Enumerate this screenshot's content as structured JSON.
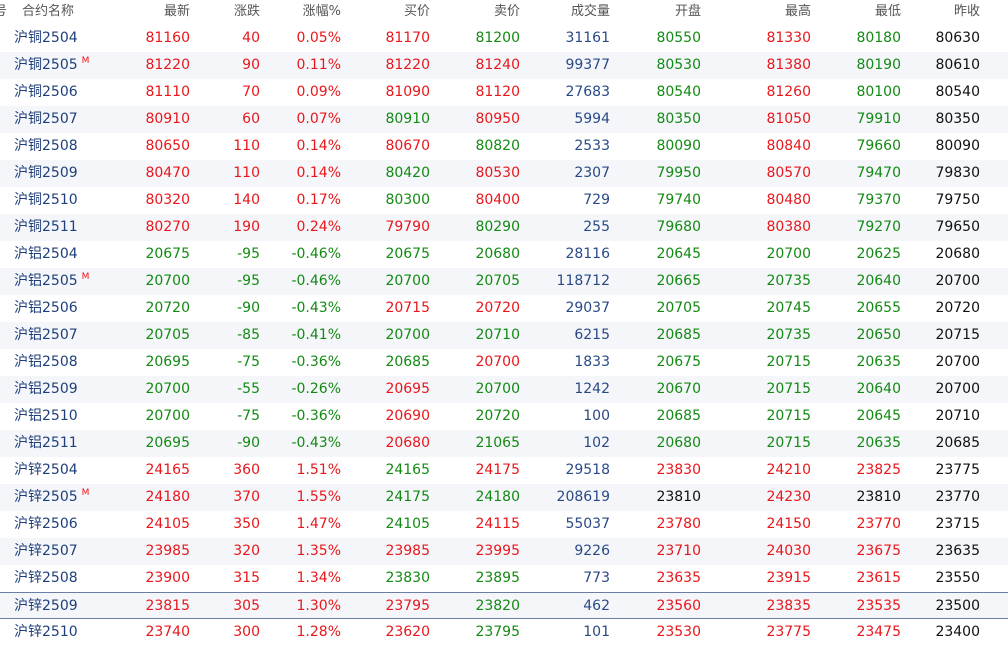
{
  "columns": [
    "号",
    "合约名称",
    "最新",
    "涨跌",
    "涨幅%",
    "买价",
    "卖价",
    "成交量",
    "开盘",
    "最高",
    "最低",
    "昨收"
  ],
  "colors": {
    "up": "#e8171b",
    "down": "#138a13",
    "volume": "#2a4a86",
    "flat": "#111111",
    "name": "#1f3f7a",
    "alt_row": "#f5f6fa"
  },
  "rows": [
    {
      "name": "沪铜2504",
      "mark": "",
      "last": "81160",
      "chg": "40",
      "pct": "0.05%",
      "bid": "81170",
      "ask": "81200",
      "vol": "31161",
      "open": "80550",
      "high": "81330",
      "low": "80180",
      "prev": "80630",
      "c": [
        "red",
        "red",
        "red",
        "red",
        "green",
        "blue",
        "green",
        "red",
        "green",
        "black"
      ]
    },
    {
      "name": "沪铜2505",
      "mark": "M",
      "last": "81220",
      "chg": "90",
      "pct": "0.11%",
      "bid": "81220",
      "ask": "81240",
      "vol": "99377",
      "open": "80530",
      "high": "81380",
      "low": "80190",
      "prev": "80610",
      "c": [
        "red",
        "red",
        "red",
        "red",
        "red",
        "blue",
        "green",
        "red",
        "green",
        "black"
      ]
    },
    {
      "name": "沪铜2506",
      "mark": "",
      "last": "81110",
      "chg": "70",
      "pct": "0.09%",
      "bid": "81090",
      "ask": "81120",
      "vol": "27683",
      "open": "80540",
      "high": "81260",
      "low": "80100",
      "prev": "80540",
      "c": [
        "red",
        "red",
        "red",
        "red",
        "red",
        "blue",
        "green",
        "red",
        "green",
        "black"
      ]
    },
    {
      "name": "沪铜2507",
      "mark": "",
      "last": "80910",
      "chg": "60",
      "pct": "0.07%",
      "bid": "80910",
      "ask": "80950",
      "vol": "5994",
      "open": "80350",
      "high": "81050",
      "low": "79910",
      "prev": "80350",
      "c": [
        "red",
        "red",
        "red",
        "green",
        "red",
        "blue",
        "green",
        "red",
        "green",
        "black"
      ]
    },
    {
      "name": "沪铜2508",
      "mark": "",
      "last": "80650",
      "chg": "110",
      "pct": "0.14%",
      "bid": "80670",
      "ask": "80820",
      "vol": "2533",
      "open": "80090",
      "high": "80840",
      "low": "79660",
      "prev": "80090",
      "c": [
        "red",
        "red",
        "red",
        "red",
        "green",
        "blue",
        "green",
        "red",
        "green",
        "black"
      ]
    },
    {
      "name": "沪铜2509",
      "mark": "",
      "last": "80470",
      "chg": "110",
      "pct": "0.14%",
      "bid": "80420",
      "ask": "80530",
      "vol": "2307",
      "open": "79950",
      "high": "80570",
      "low": "79470",
      "prev": "79830",
      "c": [
        "red",
        "red",
        "red",
        "green",
        "red",
        "blue",
        "green",
        "red",
        "green",
        "black"
      ]
    },
    {
      "name": "沪铜2510",
      "mark": "",
      "last": "80320",
      "chg": "140",
      "pct": "0.17%",
      "bid": "80300",
      "ask": "80400",
      "vol": "729",
      "open": "79740",
      "high": "80480",
      "low": "79370",
      "prev": "79750",
      "c": [
        "red",
        "red",
        "red",
        "green",
        "red",
        "blue",
        "green",
        "red",
        "green",
        "black"
      ]
    },
    {
      "name": "沪铜2511",
      "mark": "",
      "last": "80270",
      "chg": "190",
      "pct": "0.24%",
      "bid": "79790",
      "ask": "80290",
      "vol": "255",
      "open": "79680",
      "high": "80380",
      "low": "79270",
      "prev": "79650",
      "c": [
        "red",
        "red",
        "red",
        "red",
        "green",
        "blue",
        "green",
        "red",
        "green",
        "black"
      ]
    },
    {
      "name": "沪铝2504",
      "mark": "",
      "last": "20675",
      "chg": "-95",
      "pct": "-0.46%",
      "bid": "20675",
      "ask": "20680",
      "vol": "28116",
      "open": "20645",
      "high": "20700",
      "low": "20625",
      "prev": "20680",
      "c": [
        "green",
        "green",
        "green",
        "green",
        "green",
        "blue",
        "green",
        "green",
        "green",
        "black"
      ]
    },
    {
      "name": "沪铝2505",
      "mark": "M",
      "last": "20700",
      "chg": "-95",
      "pct": "-0.46%",
      "bid": "20700",
      "ask": "20705",
      "vol": "118712",
      "open": "20665",
      "high": "20735",
      "low": "20640",
      "prev": "20700",
      "c": [
        "green",
        "green",
        "green",
        "green",
        "green",
        "blue",
        "green",
        "green",
        "green",
        "black"
      ]
    },
    {
      "name": "沪铝2506",
      "mark": "",
      "last": "20720",
      "chg": "-90",
      "pct": "-0.43%",
      "bid": "20715",
      "ask": "20720",
      "vol": "29037",
      "open": "20705",
      "high": "20745",
      "low": "20655",
      "prev": "20720",
      "c": [
        "green",
        "green",
        "green",
        "red",
        "red",
        "blue",
        "green",
        "green",
        "green",
        "black"
      ]
    },
    {
      "name": "沪铝2507",
      "mark": "",
      "last": "20705",
      "chg": "-85",
      "pct": "-0.41%",
      "bid": "20700",
      "ask": "20710",
      "vol": "6215",
      "open": "20685",
      "high": "20735",
      "low": "20650",
      "prev": "20715",
      "c": [
        "green",
        "green",
        "green",
        "green",
        "green",
        "blue",
        "green",
        "green",
        "green",
        "black"
      ]
    },
    {
      "name": "沪铝2508",
      "mark": "",
      "last": "20695",
      "chg": "-75",
      "pct": "-0.36%",
      "bid": "20685",
      "ask": "20700",
      "vol": "1833",
      "open": "20675",
      "high": "20715",
      "low": "20635",
      "prev": "20700",
      "c": [
        "green",
        "green",
        "green",
        "green",
        "red",
        "blue",
        "green",
        "green",
        "green",
        "black"
      ]
    },
    {
      "name": "沪铝2509",
      "mark": "",
      "last": "20700",
      "chg": "-55",
      "pct": "-0.26%",
      "bid": "20695",
      "ask": "20700",
      "vol": "1242",
      "open": "20670",
      "high": "20715",
      "low": "20640",
      "prev": "20700",
      "c": [
        "green",
        "green",
        "green",
        "red",
        "green",
        "blue",
        "green",
        "green",
        "green",
        "black"
      ]
    },
    {
      "name": "沪铝2510",
      "mark": "",
      "last": "20700",
      "chg": "-75",
      "pct": "-0.36%",
      "bid": "20690",
      "ask": "20720",
      "vol": "100",
      "open": "20685",
      "high": "20715",
      "low": "20645",
      "prev": "20710",
      "c": [
        "green",
        "green",
        "green",
        "red",
        "green",
        "blue",
        "green",
        "green",
        "green",
        "black"
      ]
    },
    {
      "name": "沪铝2511",
      "mark": "",
      "last": "20695",
      "chg": "-90",
      "pct": "-0.43%",
      "bid": "20680",
      "ask": "21065",
      "vol": "102",
      "open": "20680",
      "high": "20715",
      "low": "20635",
      "prev": "20685",
      "c": [
        "green",
        "green",
        "green",
        "red",
        "green",
        "blue",
        "green",
        "green",
        "green",
        "black"
      ]
    },
    {
      "name": "沪锌2504",
      "mark": "",
      "last": "24165",
      "chg": "360",
      "pct": "1.51%",
      "bid": "24165",
      "ask": "24175",
      "vol": "29518",
      "open": "23830",
      "high": "24210",
      "low": "23825",
      "prev": "23775",
      "c": [
        "red",
        "red",
        "red",
        "green",
        "red",
        "blue",
        "red",
        "red",
        "red",
        "black"
      ]
    },
    {
      "name": "沪锌2505",
      "mark": "M",
      "last": "24180",
      "chg": "370",
      "pct": "1.55%",
      "bid": "24175",
      "ask": "24180",
      "vol": "208619",
      "open": "23810",
      "high": "24230",
      "low": "23810",
      "prev": "23770",
      "c": [
        "red",
        "red",
        "red",
        "green",
        "green",
        "blue",
        "black",
        "red",
        "black",
        "black"
      ]
    },
    {
      "name": "沪锌2506",
      "mark": "",
      "last": "24105",
      "chg": "350",
      "pct": "1.47%",
      "bid": "24105",
      "ask": "24115",
      "vol": "55037",
      "open": "23780",
      "high": "24150",
      "low": "23770",
      "prev": "23715",
      "c": [
        "red",
        "red",
        "red",
        "green",
        "red",
        "blue",
        "red",
        "red",
        "red",
        "black"
      ]
    },
    {
      "name": "沪锌2507",
      "mark": "",
      "last": "23985",
      "chg": "320",
      "pct": "1.35%",
      "bid": "23985",
      "ask": "23995",
      "vol": "9226",
      "open": "23710",
      "high": "24030",
      "low": "23675",
      "prev": "23635",
      "c": [
        "red",
        "red",
        "red",
        "red",
        "red",
        "blue",
        "red",
        "red",
        "red",
        "black"
      ]
    },
    {
      "name": "沪锌2508",
      "mark": "",
      "last": "23900",
      "chg": "315",
      "pct": "1.34%",
      "bid": "23830",
      "ask": "23895",
      "vol": "773",
      "open": "23635",
      "high": "23915",
      "low": "23615",
      "prev": "23550",
      "c": [
        "red",
        "red",
        "red",
        "green",
        "green",
        "blue",
        "red",
        "red",
        "red",
        "black"
      ]
    },
    {
      "name": "沪锌2509",
      "mark": "",
      "last": "23815",
      "chg": "305",
      "pct": "1.30%",
      "bid": "23795",
      "ask": "23820",
      "vol": "462",
      "open": "23560",
      "high": "23835",
      "low": "23535",
      "prev": "23500",
      "c": [
        "red",
        "red",
        "red",
        "red",
        "green",
        "blue",
        "red",
        "red",
        "red",
        "black"
      ]
    },
    {
      "name": "沪锌2510",
      "mark": "",
      "last": "23740",
      "chg": "300",
      "pct": "1.28%",
      "bid": "23620",
      "ask": "23795",
      "vol": "101",
      "open": "23530",
      "high": "23775",
      "low": "23475",
      "prev": "23400",
      "c": [
        "red",
        "red",
        "red",
        "red",
        "green",
        "blue",
        "red",
        "red",
        "red",
        "black"
      ]
    }
  ]
}
